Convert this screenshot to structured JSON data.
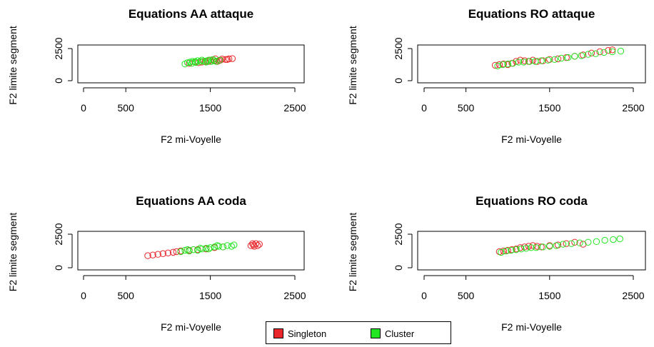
{
  "colors": {
    "singleton": "#e8262b",
    "cluster": "#22e622"
  },
  "legend": [
    {
      "label": "Singleton",
      "color": "#e8262b",
      "shape": "filled-square"
    },
    {
      "label": "Cluster",
      "color": "#22e622",
      "shape": "filled-square"
    }
  ],
  "chart_data": [
    {
      "type": "scatter",
      "title": "Equations AA attaque",
      "xlabel": "F2 mi-Voyelle",
      "ylabel": "F2 limite segment",
      "xlim": [
        0,
        2500
      ],
      "ylim": [
        0,
        2500
      ],
      "xticks": [
        "0",
        "500",
        "1500",
        "2500"
      ],
      "yticks": [
        "0",
        "2500"
      ],
      "series": [
        {
          "name": "Singleton",
          "color": "#e8262b",
          "points": [
            [
              1250,
              1350
            ],
            [
              1320,
              1450
            ],
            [
              1400,
              1450
            ],
            [
              1480,
              1500
            ],
            [
              1550,
              1550
            ],
            [
              1620,
              1600
            ],
            [
              1680,
              1650
            ],
            [
              1720,
              1700
            ],
            [
              1760,
              1720
            ],
            [
              1600,
              1550
            ],
            [
              1500,
              1600
            ],
            [
              1560,
              1700
            ],
            [
              1640,
              1680
            ],
            [
              1700,
              1650
            ],
            [
              1440,
              1500
            ],
            [
              1360,
              1400
            ],
            [
              1580,
              1500
            ]
          ]
        },
        {
          "name": "Cluster",
          "color": "#22e622",
          "points": [
            [
              1200,
              1300
            ],
            [
              1230,
              1400
            ],
            [
              1260,
              1450
            ],
            [
              1290,
              1500
            ],
            [
              1320,
              1480
            ],
            [
              1350,
              1550
            ],
            [
              1380,
              1500
            ],
            [
              1420,
              1520
            ],
            [
              1450,
              1450
            ],
            [
              1480,
              1600
            ],
            [
              1510,
              1500
            ],
            [
              1540,
              1550
            ],
            [
              1570,
              1500
            ],
            [
              1610,
              1600
            ],
            [
              1280,
              1350
            ],
            [
              1330,
              1420
            ],
            [
              1400,
              1600
            ],
            [
              1460,
              1550
            ],
            [
              1530,
              1650
            ]
          ]
        }
      ]
    },
    {
      "type": "scatter",
      "title": "Equations RO attaque",
      "xlabel": "F2 mi-Voyelle",
      "ylabel": "F2 limite segment",
      "xlim": [
        0,
        2500
      ],
      "ylim": [
        0,
        2500
      ],
      "xticks": [
        "0",
        "500",
        "1500",
        "2500"
      ],
      "yticks": [
        "0",
        "2500"
      ],
      "series": [
        {
          "name": "Singleton",
          "color": "#e8262b",
          "points": [
            [
              850,
              1200
            ],
            [
              900,
              1250
            ],
            [
              950,
              1300
            ],
            [
              1000,
              1250
            ],
            [
              1050,
              1350
            ],
            [
              1100,
              1500
            ],
            [
              1150,
              1600
            ],
            [
              1200,
              1550
            ],
            [
              1250,
              1500
            ],
            [
              1300,
              1600
            ],
            [
              1350,
              1500
            ],
            [
              1420,
              1550
            ],
            [
              1500,
              1650
            ],
            [
              1600,
              1700
            ],
            [
              1700,
              1800
            ],
            [
              1800,
              1900
            ],
            [
              1900,
              2000
            ],
            [
              2000,
              2150
            ],
            [
              2100,
              2250
            ],
            [
              2200,
              2350
            ],
            [
              2250,
              2400
            ]
          ]
        },
        {
          "name": "Cluster",
          "color": "#22e622",
          "points": [
            [
              880,
              1150
            ],
            [
              940,
              1250
            ],
            [
              1000,
              1300
            ],
            [
              1060,
              1350
            ],
            [
              1130,
              1450
            ],
            [
              1190,
              1450
            ],
            [
              1260,
              1500
            ],
            [
              1330,
              1500
            ],
            [
              1400,
              1550
            ],
            [
              1480,
              1600
            ],
            [
              1560,
              1650
            ],
            [
              1640,
              1750
            ],
            [
              1720,
              1800
            ],
            [
              1800,
              1900
            ],
            [
              1880,
              1950
            ],
            [
              1960,
              2050
            ],
            [
              2050,
              2100
            ],
            [
              2150,
              2200
            ],
            [
              2250,
              2250
            ],
            [
              2350,
              2300
            ]
          ]
        }
      ]
    },
    {
      "type": "scatter",
      "title": "Equations AA coda",
      "xlabel": "F2 mi-Voyelle",
      "ylabel": "F2 limite segment",
      "xlim": [
        0,
        2500
      ],
      "ylim": [
        0,
        2500
      ],
      "xticks": [
        "0",
        "500",
        "1500",
        "2500"
      ],
      "yticks": [
        "0",
        "2500"
      ],
      "series": [
        {
          "name": "Singleton",
          "color": "#e8262b",
          "points": [
            [
              760,
              900
            ],
            [
              820,
              950
            ],
            [
              880,
              1000
            ],
            [
              940,
              1050
            ],
            [
              1000,
              1100
            ],
            [
              1060,
              1150
            ],
            [
              1100,
              1200
            ],
            [
              1150,
              1250
            ],
            [
              1250,
              1300
            ],
            [
              1350,
              1350
            ],
            [
              1450,
              1400
            ],
            [
              1550,
              1500
            ],
            [
              1650,
              1550
            ],
            [
              1980,
              1650
            ],
            [
              2010,
              1700
            ],
            [
              2040,
              1800
            ],
            [
              2060,
              1650
            ],
            [
              2080,
              1750
            ],
            [
              2020,
              1600
            ],
            [
              2000,
              1800
            ]
          ]
        },
        {
          "name": "Cluster",
          "color": "#22e622",
          "points": [
            [
              1150,
              1200
            ],
            [
              1200,
              1300
            ],
            [
              1250,
              1250
            ],
            [
              1300,
              1350
            ],
            [
              1350,
              1300
            ],
            [
              1400,
              1400
            ],
            [
              1450,
              1450
            ],
            [
              1500,
              1500
            ],
            [
              1550,
              1550
            ],
            [
              1600,
              1600
            ],
            [
              1650,
              1550
            ],
            [
              1700,
              1650
            ],
            [
              1750,
              1600
            ],
            [
              1780,
              1700
            ],
            [
              1230,
              1350
            ],
            [
              1380,
              1450
            ],
            [
              1480,
              1400
            ],
            [
              1580,
              1650
            ]
          ]
        }
      ]
    },
    {
      "type": "scatter",
      "title": "Equations RO coda",
      "xlabel": "F2 mi-Voyelle",
      "ylabel": "F2 limite segment",
      "xlim": [
        0,
        2500
      ],
      "ylim": [
        0,
        2500
      ],
      "xticks": [
        "0",
        "500",
        "1500",
        "2500"
      ],
      "yticks": [
        "0",
        "2500"
      ],
      "series": [
        {
          "name": "Singleton",
          "color": "#e8262b",
          "points": [
            [
              900,
              1200
            ],
            [
              950,
              1250
            ],
            [
              1000,
              1300
            ],
            [
              1050,
              1350
            ],
            [
              1100,
              1400
            ],
            [
              1150,
              1500
            ],
            [
              1200,
              1550
            ],
            [
              1250,
              1600
            ],
            [
              1300,
              1650
            ],
            [
              1350,
              1600
            ],
            [
              1400,
              1550
            ],
            [
              1500,
              1650
            ],
            [
              1600,
              1700
            ],
            [
              1700,
              1800
            ],
            [
              1800,
              1900
            ],
            [
              1900,
              1750
            ]
          ]
        },
        {
          "name": "Cluster",
          "color": "#22e622",
          "points": [
            [
              920,
              1150
            ],
            [
              980,
              1250
            ],
            [
              1040,
              1300
            ],
            [
              1100,
              1350
            ],
            [
              1160,
              1400
            ],
            [
              1220,
              1450
            ],
            [
              1280,
              1500
            ],
            [
              1340,
              1500
            ],
            [
              1420,
              1550
            ],
            [
              1500,
              1600
            ],
            [
              1580,
              1650
            ],
            [
              1660,
              1750
            ],
            [
              1760,
              1800
            ],
            [
              1860,
              1850
            ],
            [
              1960,
              1900
            ],
            [
              2060,
              1950
            ],
            [
              2160,
              2050
            ],
            [
              2260,
              2100
            ],
            [
              2340,
              2150
            ]
          ]
        }
      ]
    }
  ]
}
